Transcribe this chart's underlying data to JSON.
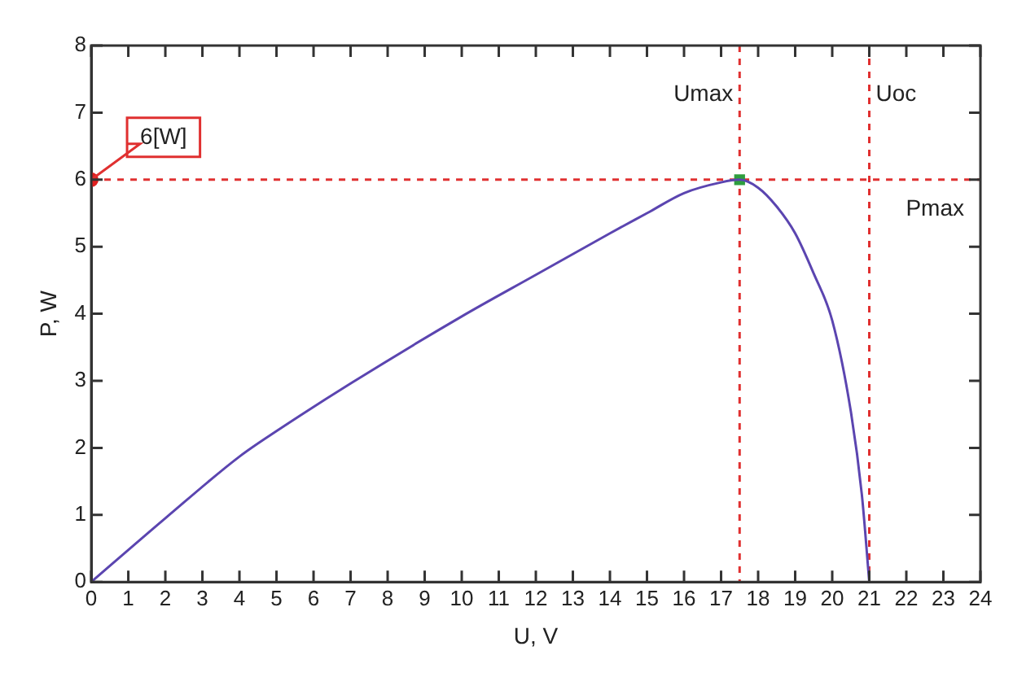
{
  "chart_data": {
    "type": "line",
    "xlabel": "U, V",
    "ylabel": "P, W",
    "xlim": [
      0,
      24
    ],
    "ylim": [
      0,
      8
    ],
    "xticks": [
      0,
      1,
      2,
      3,
      4,
      5,
      6,
      7,
      8,
      9,
      10,
      11,
      12,
      13,
      14,
      15,
      16,
      17,
      18,
      19,
      20,
      21,
      22,
      23,
      24
    ],
    "yticks": [
      0,
      1,
      2,
      3,
      4,
      5,
      6,
      7,
      8
    ],
    "grid": false,
    "legend": false,
    "line_style": "solid",
    "marker": "none",
    "series": [
      {
        "color": "#5b45b0",
        "x": [
          0,
          2,
          4,
          5,
          7,
          10,
          12,
          14,
          15,
          16,
          17,
          17.5,
          18,
          18.5,
          19,
          19.5,
          20,
          20.5,
          20.8,
          21
        ],
        "values": [
          0,
          0.95,
          1.87,
          2.25,
          2.96,
          3.96,
          4.58,
          5.2,
          5.5,
          5.8,
          5.96,
          6,
          5.88,
          5.6,
          5.2,
          4.6,
          3.9,
          2.55,
          1.3,
          0
        ]
      },
      {
        "type": "scatter",
        "marker": "square",
        "color": "#2e9e3e",
        "x": [
          17.5
        ],
        "values": [
          6
        ]
      },
      {
        "type": "scatter",
        "marker": "circle",
        "color": "#e02020",
        "x": [
          0
        ],
        "values": [
          6
        ]
      }
    ],
    "ref_lines": [
      {
        "axis": "x",
        "value": 17.5,
        "label": "Umax",
        "color": "#e03030",
        "line_style": "dashed"
      },
      {
        "axis": "x",
        "value": 21,
        "label": "Uoc",
        "color": "#e03030",
        "line_style": "dashed"
      },
      {
        "axis": "y",
        "value": 6,
        "label": "Pmax",
        "color": "#e03030",
        "line_style": "dashed"
      }
    ],
    "annotations": [
      {
        "text": "6[W]",
        "x": 0,
        "y": 6
      }
    ]
  }
}
